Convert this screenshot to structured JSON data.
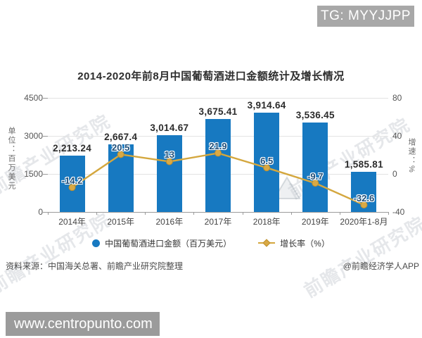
{
  "badge": {
    "text": "TG: MYYJJPP"
  },
  "site_watermark": {
    "text": "www.centropunto.com"
  },
  "background_watermark": {
    "text": "前瞻产业研究院"
  },
  "source": {
    "left": "资料来源：中国海关总署、前瞻产业研究院整理",
    "right": "@前瞻经济学人APP"
  },
  "chart_data": {
    "type": "bar",
    "subtype": "bar+line combo, dual axis",
    "title": "2014-2020年前8月中国葡萄酒进口金额统计及增长情况",
    "categories": [
      "2014年",
      "2015年",
      "2016年",
      "2017年",
      "2018年",
      "2019年",
      "2020年1-8月"
    ],
    "series": [
      {
        "name": "中国葡萄酒进口金额（百万美元）",
        "type": "bar",
        "axis": "left",
        "color": "#1779c1",
        "values": [
          2213.24,
          2667.4,
          3014.67,
          3675.41,
          3914.64,
          3536.45,
          1585.81
        ],
        "labels": [
          "2,213.24",
          "2,667.4",
          "3,014.67",
          "3,675.41",
          "3,914.64",
          "3,536.45",
          "1,585.81"
        ]
      },
      {
        "name": "增长率（%）",
        "type": "line",
        "axis": "right",
        "color": "#d4a73e",
        "marker_color": "#d9a945",
        "values": [
          -14.2,
          20.5,
          13,
          21.9,
          6.5,
          -9.7,
          -32.6
        ],
        "labels": [
          "-14.2",
          "20.5",
          "13",
          "21.9",
          "6.5",
          "-9.7",
          "-32.6"
        ]
      }
    ],
    "left_axis": {
      "label": "单位：百万美元",
      "min": 0,
      "max": 4500,
      "ticks": [
        0,
        1500,
        3000,
        4500
      ]
    },
    "right_axis": {
      "label": "增速：%",
      "min": -40,
      "max": 80,
      "ticks": [
        -40,
        0,
        40,
        80
      ]
    },
    "grid": "horizontal light gray",
    "legend_position": "bottom center",
    "label_text_color": "#2b2b2b",
    "line_label_color": "#1e4e79"
  }
}
